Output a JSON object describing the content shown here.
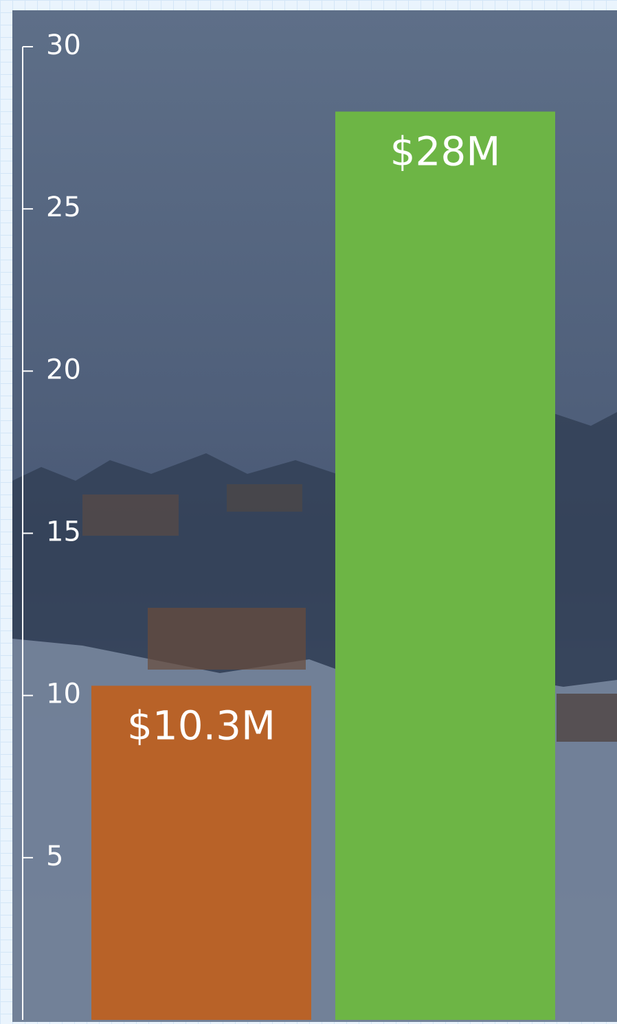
{
  "chart_data": {
    "type": "bar",
    "categories": [
      null,
      null
    ],
    "values": [
      10.3,
      28
    ],
    "value_labels": [
      "$10.3M",
      "$28M"
    ],
    "colors": [
      "#b86228",
      "#6db545"
    ],
    "ylim": [
      0,
      30
    ],
    "yticks": [
      5,
      10,
      15,
      20,
      25,
      30
    ]
  }
}
